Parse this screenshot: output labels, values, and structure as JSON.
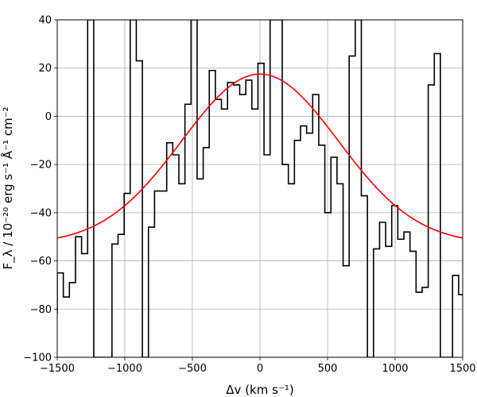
{
  "chart_data": {
    "type": "line",
    "xlabel": "Δv (km s⁻¹)",
    "ylabel": "F_λ / 10⁻²⁰ erg s⁻¹ Å⁻¹ cm⁻²",
    "xlim": [
      -1500,
      1500
    ],
    "ylim": [
      -100,
      40
    ],
    "x_ticks": [
      "−1500",
      "−1000",
      "−500",
      "0",
      "500",
      "1000",
      "1500"
    ],
    "y_ticks": [
      "−100",
      "−80",
      "−60",
      "−40",
      "−20",
      "0",
      "20",
      "40"
    ],
    "grid": true,
    "series": [
      {
        "style": "step",
        "color": "#000000",
        "edges": [
          -1500,
          -1455,
          -1410,
          -1365,
          -1320,
          -1275,
          -1230,
          -1185,
          -1140,
          -1095,
          -1050,
          -1005,
          -960,
          -915,
          -870,
          -825,
          -780,
          -735,
          -690,
          -645,
          -600,
          -555,
          -510,
          -465,
          -420,
          -375,
          -330,
          -285,
          -240,
          -195,
          -150,
          -105,
          -60,
          -15,
          30,
          75,
          120,
          165,
          210,
          255,
          300,
          345,
          390,
          435,
          480,
          525,
          570,
          615,
          660,
          705,
          750,
          795,
          840,
          885,
          930,
          975,
          1020,
          1065,
          1110,
          1155,
          1200,
          1245,
          1290,
          1335,
          1380,
          1425,
          1470,
          1500
        ],
        "values": [
          -65,
          -75,
          -69,
          -50,
          -57,
          40,
          -100,
          -100,
          -100,
          -53,
          -49,
          -32,
          40,
          23,
          -100,
          -46,
          -31,
          -31,
          -11,
          -16,
          -28,
          5,
          40,
          -26,
          -13,
          19,
          7,
          3,
          14,
          13,
          9,
          15,
          3,
          22,
          -16,
          40,
          40,
          -20,
          -28,
          -10,
          -4,
          -7,
          9,
          -12,
          -40,
          -17,
          -28,
          -62,
          25,
          40,
          -33,
          -100,
          -55,
          -44,
          -54,
          -37,
          -51,
          -48,
          -56,
          -73,
          -71,
          13,
          26,
          -100,
          -100,
          -66,
          -74
        ]
      },
      {
        "style": "gaussian",
        "color": "#ff0000",
        "amplitude": 70.5,
        "center": 0,
        "sigma": 580,
        "baseline": -53
      }
    ]
  }
}
